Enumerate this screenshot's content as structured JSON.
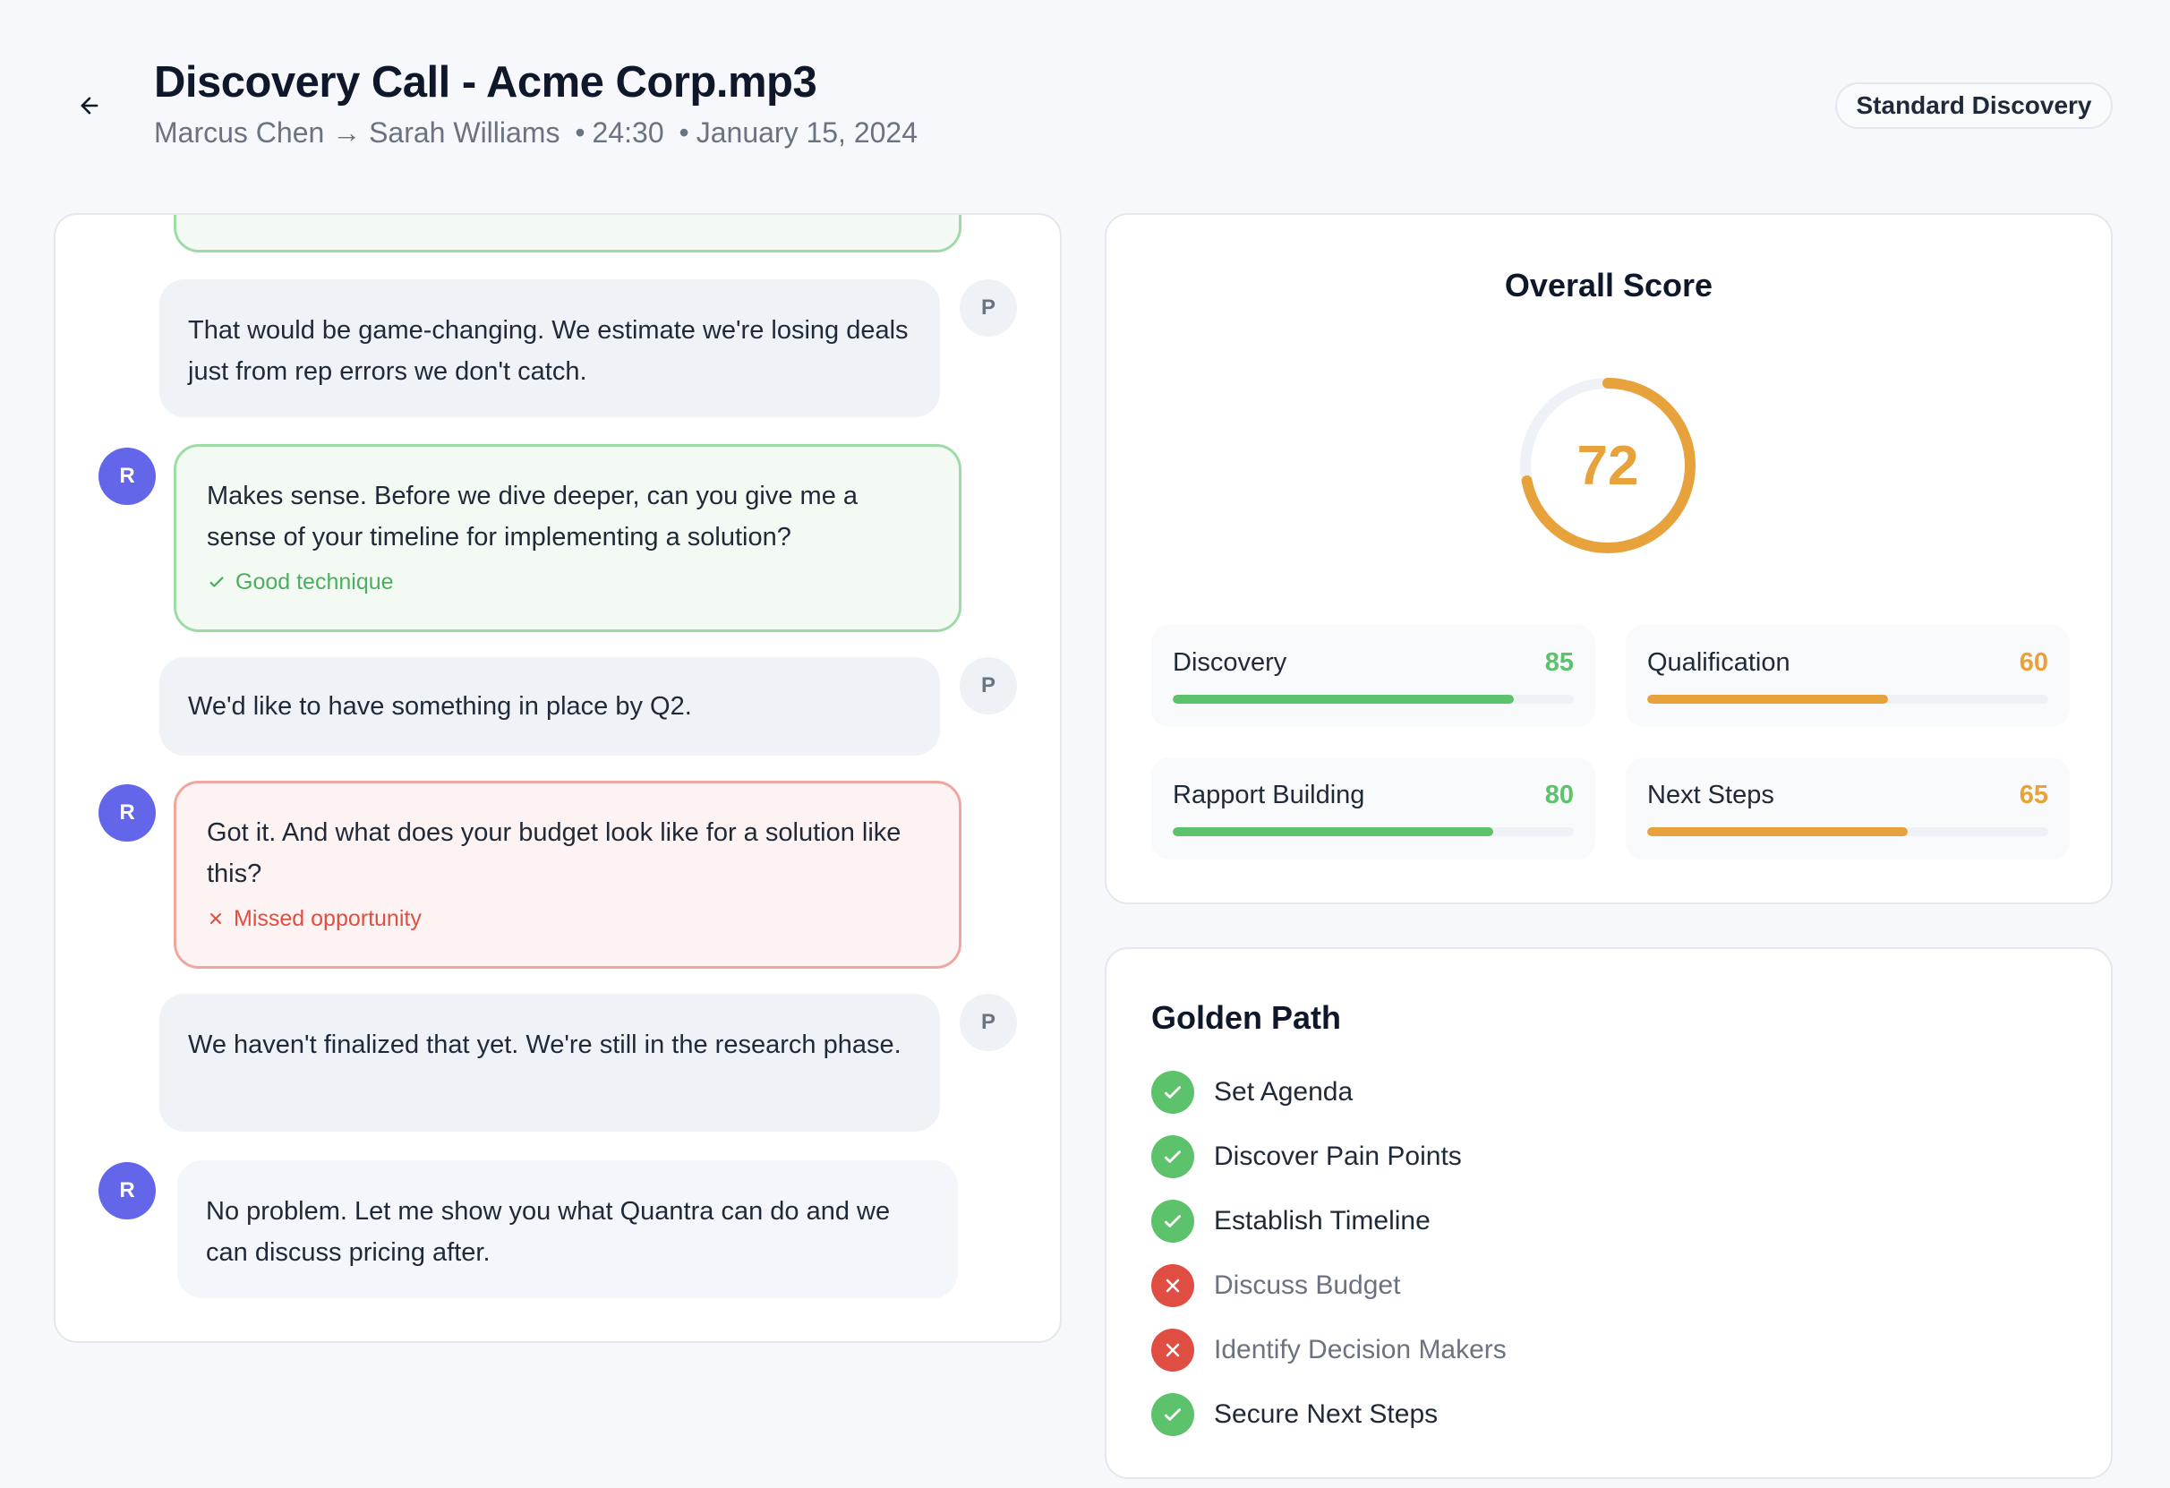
{
  "header": {
    "title": "Discovery Call - Acme Corp.mp3",
    "rep_name": "Marcus Chen",
    "arrow": "→",
    "prospect_name": "Sarah Williams",
    "dot": "•",
    "duration": "24:30",
    "date": "January 15, 2024",
    "badge": "Standard Discovery"
  },
  "transcript": {
    "messages": [
      {
        "speaker": "P",
        "text": "That would be game-changing. We estimate we're losing deals just from rep errors we don't catch."
      },
      {
        "speaker": "R",
        "text": "Makes sense. Before we dive deeper, can you give me a sense of your timeline for implementing a solution?",
        "tag": "Good technique"
      },
      {
        "speaker": "P",
        "text": "We'd like to have something in place by Q2."
      },
      {
        "speaker": "R",
        "text": "Got it. And what does your budget look like for a solution like this?",
        "tag": "Missed opportunity"
      },
      {
        "speaker": "P",
        "text": "We haven't finalized that yet. We're still in the research phase."
      },
      {
        "speaker": "R",
        "text": "No problem. Let me show you what Quantra can do and we can discuss pricing after."
      }
    ]
  },
  "score": {
    "title": "Overall Score",
    "value": 72,
    "max": 100,
    "metrics": [
      {
        "label": "Discovery",
        "value": 85,
        "color": "#5cc26b"
      },
      {
        "label": "Qualification",
        "value": 60,
        "color": "#e8a23c"
      },
      {
        "label": "Rapport Building",
        "value": 80,
        "color": "#5cc26b"
      },
      {
        "label": "Next Steps",
        "value": 65,
        "color": "#e8a23c"
      }
    ]
  },
  "golden_path": {
    "title": "Golden Path",
    "steps": [
      {
        "label": "Set Agenda",
        "done": true
      },
      {
        "label": "Discover Pain Points",
        "done": true
      },
      {
        "label": "Establish Timeline",
        "done": true
      },
      {
        "label": "Discuss Budget",
        "done": false
      },
      {
        "label": "Identify Decision Makers",
        "done": false
      },
      {
        "label": "Secure Next Steps",
        "done": true
      }
    ]
  },
  "colors": {
    "good": "#5cc26b",
    "warn": "#e8a23c",
    "bad": "#e04e43",
    "rep_avatar": "#6366e8"
  }
}
